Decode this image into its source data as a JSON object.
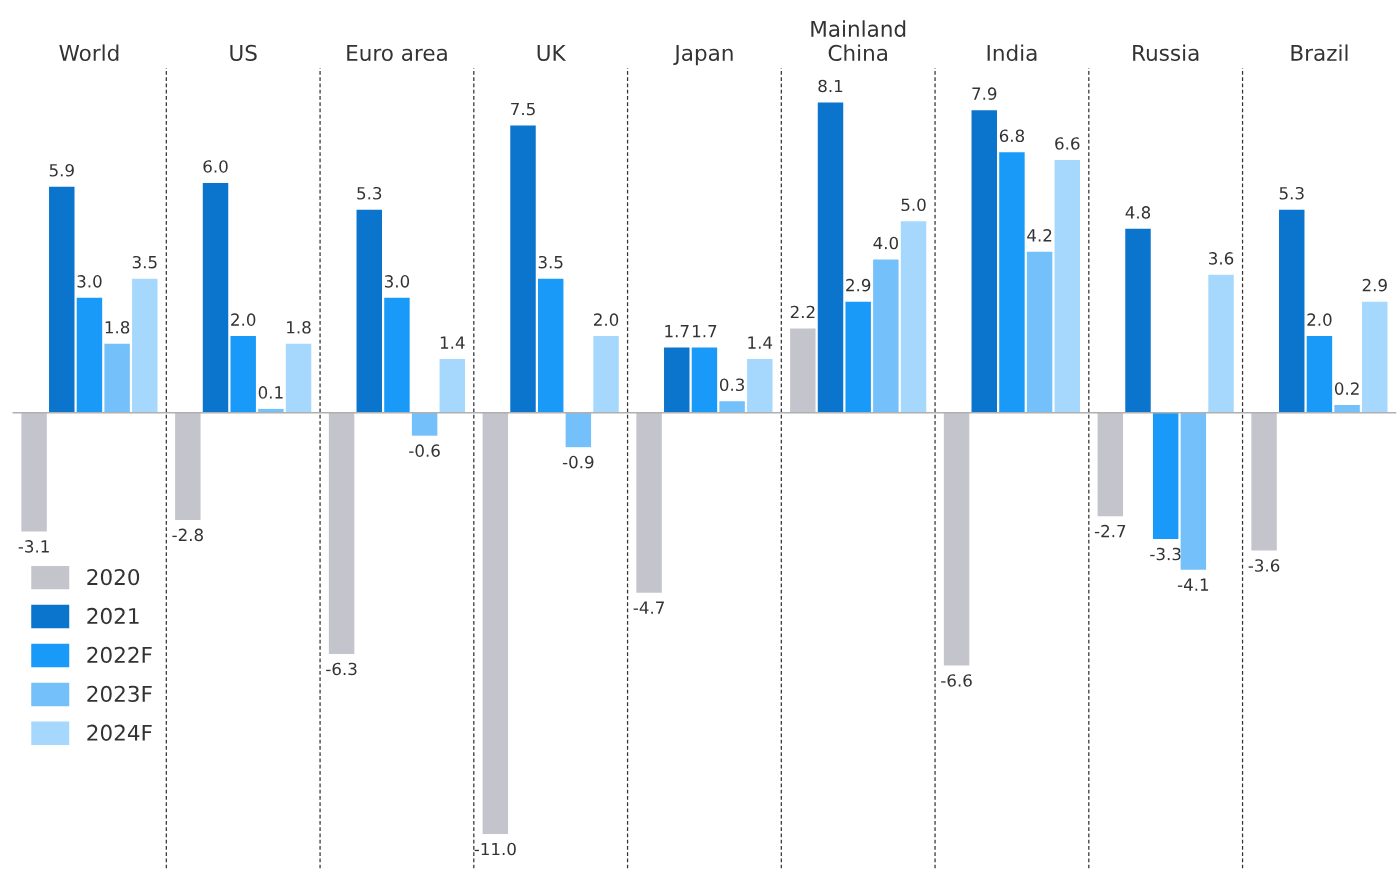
{
  "chart_data": {
    "type": "bar",
    "categories": [
      "World",
      "US",
      "Euro area",
      "UK",
      "Japan",
      "Mainland\nChina",
      "India",
      "Russia",
      "Brazil"
    ],
    "series": [
      {
        "name": "2020",
        "color": "#c4c4cd",
        "values": [
          -3.1,
          -2.8,
          -6.3,
          -11.0,
          -4.7,
          2.2,
          -6.6,
          -2.7,
          -3.6
        ],
        "value_labels": [
          "-3.1",
          "-2.8",
          "-6.3",
          "-11.0",
          "-4.7",
          "2.2",
          "-6.6",
          "-2.7",
          "-3.6"
        ]
      },
      {
        "name": "2021",
        "color": "#0b74cc",
        "values": [
          5.9,
          6.0,
          5.3,
          7.5,
          1.7,
          8.1,
          7.9,
          4.8,
          5.3
        ],
        "value_labels": [
          "5.9",
          "6.0",
          "5.3",
          "7.5",
          "1.7",
          "8.1",
          "7.9",
          "4.8",
          "5.3"
        ]
      },
      {
        "name": "2022F",
        "color": "#1a9af8",
        "values": [
          3.0,
          2.0,
          3.0,
          3.5,
          1.7,
          2.9,
          6.8,
          -3.3,
          2.0
        ],
        "value_labels": [
          "3.0",
          "2.0",
          "3.0",
          "3.5",
          "1.7",
          "2.9",
          "6.8",
          "-3.3",
          "2.0"
        ]
      },
      {
        "name": "2023F",
        "color": "#74c0fa",
        "values": [
          1.8,
          0.1,
          -0.6,
          -0.9,
          0.3,
          4.0,
          4.2,
          -4.1,
          0.2
        ],
        "value_labels": [
          "1.8",
          "0.1",
          "-0.6",
          "-0.9",
          "0.3",
          "4.0",
          "4.2",
          "-4.1",
          "0.2"
        ]
      },
      {
        "name": "2024F",
        "color": "#a6d8fd",
        "values": [
          3.5,
          1.8,
          1.4,
          2.0,
          1.4,
          5.0,
          6.6,
          3.6,
          2.9
        ],
        "value_labels": [
          "3.5",
          "1.8",
          "1.4",
          "2.0",
          "1.4",
          "5.0",
          "6.6",
          "3.6",
          "2.9"
        ]
      }
    ],
    "ylim": [
      -11.9,
      9.0
    ],
    "tick_labels": "x",
    "grid": "x",
    "legend": "bottom left"
  }
}
